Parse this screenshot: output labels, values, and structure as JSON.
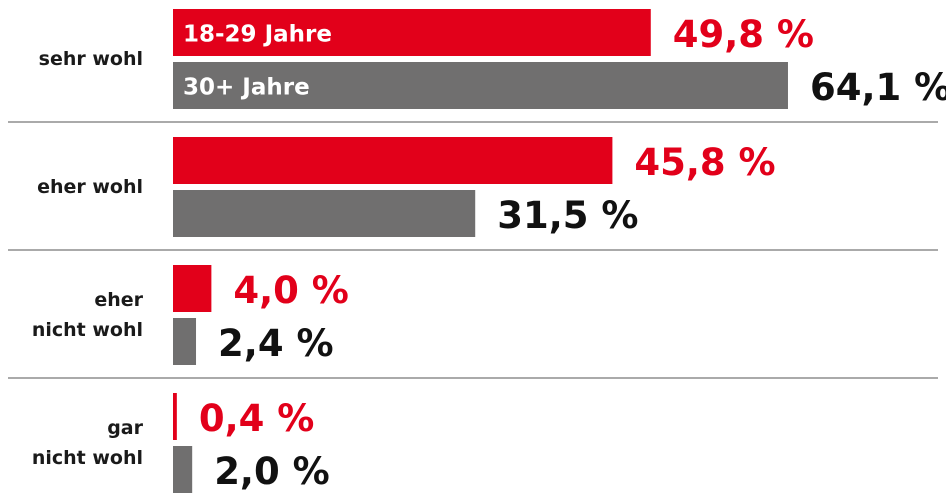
{
  "chart_data": {
    "type": "bar",
    "orientation": "horizontal",
    "categories": [
      "sehr wohl",
      "eher wohl",
      "eher\nnicht wohl",
      "gar\nnicht wohl"
    ],
    "series": [
      {
        "name": "18-29 Jahre",
        "color": "#e2001a",
        "values": [
          49.8,
          45.8,
          4.0,
          0.4
        ],
        "value_labels": [
          "49,8 %",
          "45,8 %",
          "4,0 %",
          "0,4 %"
        ]
      },
      {
        "name": "30+ Jahre",
        "color": "#706f6f",
        "values": [
          64.1,
          31.5,
          2.4,
          2.0
        ],
        "value_labels": [
          "64,1 %",
          "31,5 %",
          "2,4 %",
          "2,0 %"
        ]
      }
    ]
  }
}
